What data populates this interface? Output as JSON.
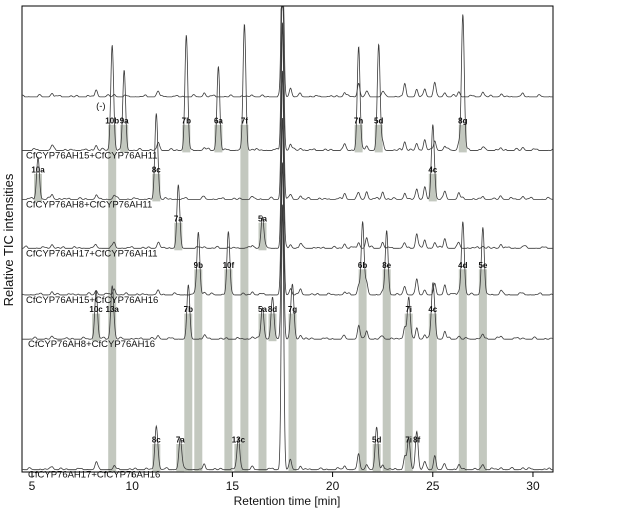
{
  "chart_data": {
    "type": "line",
    "xlabel": "Retention time [min]",
    "ylabel": "Relative TIC intensities",
    "xlim": [
      4.5,
      31
    ],
    "xticks": [
      5,
      10,
      15,
      20,
      25,
      30
    ],
    "grid": false,
    "legend": "none",
    "traces": [
      {
        "name": "(-)",
        "baseline_frac": 0.195
      },
      {
        "name": "CfCYP76AH15+CfCYP76AH11",
        "baseline_frac": 0.31
      },
      {
        "name": "CfCYP76AH8+CfCYP76AH11",
        "baseline_frac": 0.415
      },
      {
        "name": "CfCYP76AH17+CfCYP76AH11",
        "baseline_frac": 0.52
      },
      {
        "name": "CfCYP76AH15+CfCYP76AH16",
        "baseline_frac": 0.62
      },
      {
        "name": "CfCYP76AH8+CfCYP76AH16",
        "baseline_frac": 0.715
      },
      {
        "name": "CfCYP76AH17+CfCYP76AH16",
        "baseline_frac": 0.995
      }
    ],
    "common_peaks": [
      {
        "x": 6.0,
        "h": 0.1
      },
      {
        "x": 8.2,
        "h": 0.14
      },
      {
        "x": 9.1,
        "h": 0.12
      },
      {
        "x": 11.3,
        "h": 0.16
      },
      {
        "x": 13.6,
        "h": 0.08
      },
      {
        "x": 16.0,
        "h": 0.06
      },
      {
        "x": 17.5,
        "h": 1.0
      },
      {
        "x": 17.9,
        "h": 0.18
      },
      {
        "x": 18.4,
        "h": 0.1
      },
      {
        "x": 20.6,
        "h": 0.12
      },
      {
        "x": 21.3,
        "h": 0.28
      },
      {
        "x": 21.7,
        "h": 0.22
      },
      {
        "x": 22.5,
        "h": 0.15
      },
      {
        "x": 23.6,
        "h": 0.25
      },
      {
        "x": 24.2,
        "h": 0.3
      },
      {
        "x": 24.6,
        "h": 0.22
      },
      {
        "x": 25.1,
        "h": 0.28
      },
      {
        "x": 25.6,
        "h": 0.2
      },
      {
        "x": 26.3,
        "h": 0.14
      },
      {
        "x": 27.5,
        "h": 0.1
      },
      {
        "x": 28.4,
        "h": 0.08
      },
      {
        "x": 29.5,
        "h": 0.06
      }
    ],
    "annotations": [
      {
        "trace": 1,
        "label": "10b",
        "x": 9.0,
        "h": 0.5
      },
      {
        "trace": 1,
        "label": "9a",
        "x": 9.6,
        "h": 0.38
      },
      {
        "trace": 1,
        "label": "7b",
        "x": 12.7,
        "h": 0.55
      },
      {
        "trace": 1,
        "label": "6a",
        "x": 14.3,
        "h": 0.4
      },
      {
        "trace": 1,
        "label": "7f",
        "x": 15.6,
        "h": 0.6
      },
      {
        "trace": 1,
        "label": "7h",
        "x": 21.3,
        "h": 0.45
      },
      {
        "trace": 1,
        "label": "5d",
        "x": 22.3,
        "h": 0.5
      },
      {
        "trace": 1,
        "label": "8g",
        "x": 26.5,
        "h": 0.65
      },
      {
        "trace": 2,
        "label": "10a",
        "x": 5.3,
        "h": 0.2
      },
      {
        "trace": 2,
        "label": "8c",
        "x": 11.2,
        "h": 0.4
      },
      {
        "trace": 2,
        "label": "4c",
        "x": 25.0,
        "h": 0.35
      },
      {
        "trace": 3,
        "label": "7a",
        "x": 12.3,
        "h": 0.3
      },
      {
        "trace": 3,
        "label": "5a",
        "x": 16.5,
        "h": 0.15
      },
      {
        "trace": 4,
        "label": "6b",
        "x": 21.5,
        "h": 0.35
      },
      {
        "trace": 4,
        "label": "8e",
        "x": 22.7,
        "h": 0.3
      },
      {
        "trace": 4,
        "label": "4d",
        "x": 26.5,
        "h": 0.35
      },
      {
        "trace": 4,
        "label": "5e",
        "x": 27.5,
        "h": 0.3
      },
      {
        "trace": 4,
        "label": "9b",
        "x": 13.3,
        "h": 0.3
      },
      {
        "trace": 4,
        "label": "10f",
        "x": 14.8,
        "h": 0.3
      },
      {
        "trace": 5,
        "label": "7b",
        "x": 12.8,
        "h": 0.25
      },
      {
        "trace": 5,
        "label": "5a",
        "x": 16.5,
        "h": 0.15
      },
      {
        "trace": 5,
        "label": "8d",
        "x": 17.0,
        "h": 0.2
      },
      {
        "trace": 5,
        "label": "7g",
        "x": 18.0,
        "h": 0.25
      },
      {
        "trace": 5,
        "label": "7i",
        "x": 23.8,
        "h": 0.2
      },
      {
        "trace": 5,
        "label": "4c",
        "x": 25.0,
        "h": 0.25
      },
      {
        "trace": 5,
        "label": "10c",
        "x": 8.2,
        "h": 0.2
      },
      {
        "trace": 5,
        "label": "13a",
        "x": 9.0,
        "h": 0.25
      },
      {
        "trace": 6,
        "label": "8c",
        "x": 11.2,
        "h": 0.2
      },
      {
        "trace": 6,
        "label": "7a",
        "x": 12.4,
        "h": 0.15
      },
      {
        "trace": 6,
        "label": "13c",
        "x": 15.3,
        "h": 0.15
      },
      {
        "trace": 6,
        "label": "5d",
        "x": 22.2,
        "h": 0.2
      },
      {
        "trace": 6,
        "label": "7i",
        "x": 23.8,
        "h": 0.15
      },
      {
        "trace": 6,
        "label": "8f",
        "x": 24.2,
        "h": 0.15
      }
    ],
    "highlight_bands": [
      {
        "x": 5.3,
        "from": 2,
        "to": 2
      },
      {
        "x": 8.2,
        "from": 5,
        "to": 5
      },
      {
        "x": 9.0,
        "from": 1,
        "to": 6
      },
      {
        "x": 9.6,
        "from": 1,
        "to": 1
      },
      {
        "x": 11.2,
        "from": 2,
        "to": 2
      },
      {
        "x": 11.2,
        "from": 6,
        "to": 6
      },
      {
        "x": 12.3,
        "from": 3,
        "to": 3
      },
      {
        "x": 12.4,
        "from": 6,
        "to": 6
      },
      {
        "x": 12.7,
        "from": 1,
        "to": 1
      },
      {
        "x": 12.8,
        "from": 5,
        "to": 6
      },
      {
        "x": 13.3,
        "from": 4,
        "to": 6
      },
      {
        "x": 14.3,
        "from": 1,
        "to": 1
      },
      {
        "x": 14.8,
        "from": 4,
        "to": 6
      },
      {
        "x": 15.3,
        "from": 6,
        "to": 6
      },
      {
        "x": 15.6,
        "from": 1,
        "to": 6
      },
      {
        "x": 16.5,
        "from": 3,
        "to": 3
      },
      {
        "x": 16.5,
        "from": 5,
        "to": 6
      },
      {
        "x": 17.0,
        "from": 5,
        "to": 5
      },
      {
        "x": 18.0,
        "from": 5,
        "to": 6
      },
      {
        "x": 21.3,
        "from": 1,
        "to": 1
      },
      {
        "x": 21.5,
        "from": 4,
        "to": 6
      },
      {
        "x": 22.2,
        "from": 6,
        "to": 6
      },
      {
        "x": 22.3,
        "from": 1,
        "to": 1
      },
      {
        "x": 22.7,
        "from": 4,
        "to": 6
      },
      {
        "x": 23.8,
        "from": 5,
        "to": 6
      },
      {
        "x": 25.0,
        "from": 2,
        "to": 2
      },
      {
        "x": 25.0,
        "from": 5,
        "to": 6
      },
      {
        "x": 26.5,
        "from": 1,
        "to": 1
      },
      {
        "x": 26.5,
        "from": 4,
        "to": 6
      },
      {
        "x": 27.5,
        "from": 4,
        "to": 6
      }
    ]
  },
  "colors": {
    "trace": "#3a3a3a",
    "band": "#b9beb4",
    "axis": "#000000"
  }
}
